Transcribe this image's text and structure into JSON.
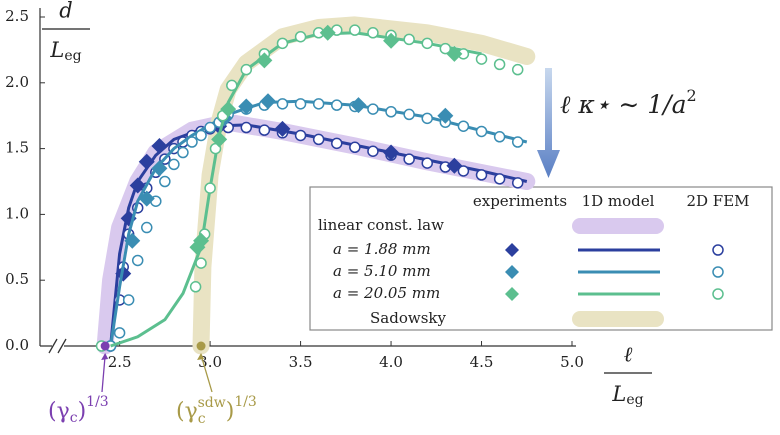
{
  "chart_data": {
    "type": "line",
    "y_label": {
      "numerator": "d",
      "denominator": "L",
      "subscript": "eg"
    },
    "x_label": {
      "numerator": "ℓ",
      "denominator": "L",
      "subscript": "eg"
    },
    "xlim": [
      2.06,
      5.0
    ],
    "ylim": [
      0,
      2.5
    ],
    "xticks": [
      {
        "value": 2.5,
        "label": "2.5"
      },
      {
        "value": 3.0,
        "label": "3.0"
      },
      {
        "value": 3.5,
        "label": "3.5"
      },
      {
        "value": 4.0,
        "label": "4.0"
      },
      {
        "value": 4.5,
        "label": "4.5"
      },
      {
        "value": 5.0,
        "label": "5.0"
      }
    ],
    "yticks": [
      {
        "value": 0,
        "label": "0.0"
      },
      {
        "value": 0.5,
        "label": "0.5"
      },
      {
        "value": 1.0,
        "label": "1.0"
      },
      {
        "value": 1.5,
        "label": "1.5"
      },
      {
        "value": 2.0,
        "label": "2.0"
      },
      {
        "value": 2.5,
        "label": "2.5"
      }
    ],
    "legend_columns": [
      "experiments",
      "1D model",
      "2D FEM"
    ],
    "bands": [
      {
        "name": "linear const. law",
        "color": "#d9c9ee",
        "x": [
          2.42,
          2.45,
          2.5,
          2.6,
          2.7,
          2.9,
          3.1,
          3.4,
          3.8,
          4.2,
          4.75
        ],
        "y": [
          0,
          0.5,
          0.9,
          1.25,
          1.47,
          1.64,
          1.7,
          1.63,
          1.52,
          1.4,
          1.25
        ]
      },
      {
        "name": "Sadowsky",
        "color": "#e9e3c3",
        "x": [
          2.95,
          2.96,
          3.0,
          3.05,
          3.1,
          3.2,
          3.4,
          3.6,
          3.8,
          4.2,
          4.5,
          4.75
        ],
        "y": [
          0,
          0.6,
          1.3,
          1.7,
          1.95,
          2.15,
          2.35,
          2.42,
          2.44,
          2.38,
          2.3,
          2.2
        ]
      }
    ],
    "series": [
      {
        "name": "a =  1.88 mm",
        "color": "#2b3f9e",
        "experiments": {
          "x": [
            2.52,
            2.55,
            2.6,
            2.65,
            2.72,
            3.05,
            3.4,
            4.0,
            4.35
          ],
          "y": [
            0.55,
            0.97,
            1.22,
            1.4,
            1.52,
            1.67,
            1.65,
            1.47,
            1.37
          ]
        },
        "model_1d": {
          "x": [
            2.45,
            2.5,
            2.55,
            2.6,
            2.7,
            2.8,
            3.0,
            3.2,
            3.5,
            4.0,
            4.5,
            4.75
          ],
          "y": [
            0,
            0.7,
            1.05,
            1.25,
            1.45,
            1.57,
            1.67,
            1.68,
            1.61,
            1.47,
            1.33,
            1.25
          ]
        },
        "fem_2d": {
          "x": [
            2.45,
            2.5,
            2.52,
            2.55,
            2.6,
            2.65,
            2.7,
            2.75,
            2.8,
            2.85,
            2.9,
            2.95,
            3.0,
            3.1,
            3.2,
            3.3,
            3.4,
            3.5,
            3.6,
            3.7,
            3.8,
            3.9,
            4.0,
            4.1,
            4.2,
            4.3,
            4.4,
            4.5,
            4.6,
            4.7
          ],
          "y": [
            0,
            0.35,
            0.6,
            0.85,
            1.05,
            1.2,
            1.32,
            1.42,
            1.5,
            1.55,
            1.6,
            1.63,
            1.65,
            1.66,
            1.66,
            1.64,
            1.62,
            1.6,
            1.57,
            1.54,
            1.51,
            1.48,
            1.45,
            1.42,
            1.39,
            1.36,
            1.33,
            1.3,
            1.27,
            1.24
          ]
        }
      },
      {
        "name": "a =  5.10 mm",
        "color": "#3a8db3",
        "experiments": {
          "x": [
            2.57,
            2.65,
            2.72,
            3.08,
            3.2,
            3.32,
            3.82,
            4.3
          ],
          "y": [
            0.8,
            1.12,
            1.35,
            1.73,
            1.82,
            1.86,
            1.83,
            1.75
          ]
        },
        "model_1d": {
          "x": [
            2.45,
            2.5,
            2.55,
            2.6,
            2.7,
            2.8,
            2.9,
            3.0,
            3.1,
            3.3,
            3.5,
            3.8,
            4.2,
            4.75
          ],
          "y": [
            0,
            0.45,
            0.85,
            1.1,
            1.35,
            1.5,
            1.6,
            1.68,
            1.76,
            1.85,
            1.86,
            1.83,
            1.74,
            1.55
          ]
        },
        "fem_2d": {
          "x": [
            2.45,
            2.5,
            2.55,
            2.6,
            2.65,
            2.7,
            2.75,
            2.8,
            2.85,
            2.9,
            2.95,
            3.0,
            3.05,
            3.1,
            3.2,
            3.3,
            3.4,
            3.5,
            3.6,
            3.7,
            3.8,
            3.9,
            4.0,
            4.1,
            4.2,
            4.3,
            4.4,
            4.5,
            4.6,
            4.7
          ],
          "y": [
            0,
            0.1,
            0.35,
            0.65,
            0.9,
            1.1,
            1.25,
            1.38,
            1.47,
            1.55,
            1.6,
            1.66,
            1.7,
            1.76,
            1.8,
            1.83,
            1.84,
            1.84,
            1.84,
            1.83,
            1.82,
            1.8,
            1.78,
            1.76,
            1.73,
            1.7,
            1.67,
            1.63,
            1.59,
            1.55
          ]
        }
      },
      {
        "name": "a = 20.05 mm",
        "color": "#5cbf8f",
        "experiments": {
          "x": [
            2.93,
            2.95,
            3.05,
            3.1,
            3.3,
            3.65,
            4.0,
            4.35
          ],
          "y": [
            0.75,
            0.8,
            1.57,
            1.8,
            2.17,
            2.38,
            2.32,
            2.22
          ]
        },
        "model_1d": {
          "x": [
            2.45,
            2.6,
            2.75,
            2.85,
            2.95,
            3.0,
            3.05,
            3.1,
            3.2,
            3.4,
            3.6,
            3.8,
            4.2,
            4.5
          ],
          "y": [
            0,
            0.07,
            0.2,
            0.4,
            0.75,
            1.2,
            1.6,
            1.85,
            2.1,
            2.3,
            2.37,
            2.38,
            2.3,
            2.22
          ]
        },
        "fem_2d": {
          "x": [
            2.4,
            2.92,
            2.95,
            2.97,
            3.0,
            3.03,
            3.07,
            3.12,
            3.2,
            3.3,
            3.4,
            3.5,
            3.6,
            3.7,
            3.8,
            3.9,
            4.0,
            4.1,
            4.2,
            4.3,
            4.4,
            4.5,
            4.6,
            4.7
          ],
          "y": [
            0,
            0.45,
            0.63,
            0.85,
            1.2,
            1.5,
            1.75,
            1.98,
            2.1,
            2.22,
            2.3,
            2.35,
            2.38,
            2.4,
            2.4,
            2.38,
            2.36,
            2.33,
            2.3,
            2.26,
            2.22,
            2.18,
            2.14,
            2.1
          ]
        }
      }
    ],
    "thresholds": [
      {
        "x": 2.42,
        "color": "#7b3fb0",
        "label_parts": [
          "(γ",
          "c",
          ")",
          "1/3"
        ]
      },
      {
        "x": 2.95,
        "color": "#a89a48",
        "label_parts": [
          "(γ",
          "c",
          "sdw",
          ")",
          "1/3"
        ]
      }
    ],
    "arrow_label": {
      "text": "ℓ κ⋆ ∼ 1/a",
      "superscript": "2"
    }
  }
}
